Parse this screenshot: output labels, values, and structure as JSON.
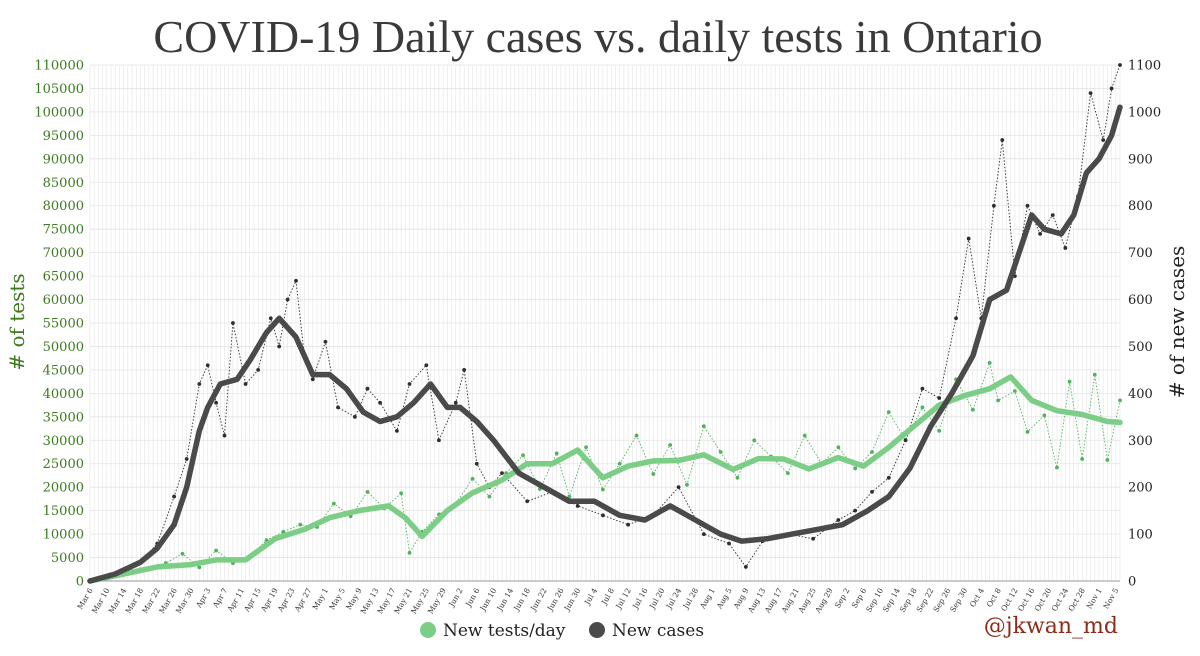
{
  "colors": {
    "tests": "#7ccd86",
    "tests_dot": "#4fb35c",
    "cases": "#4a4a4a",
    "cases_dot": "#2e2e2e",
    "left_axis": "#3c7a1e",
    "right_axis": "#222222",
    "grid": "#e4e4e4",
    "credit": "#8b2d1a"
  },
  "chart_data": {
    "type": "line",
    "title": "COVID-19 Daily cases vs. daily tests in Ontario",
    "ylabel_left": "# of tests",
    "ylabel_right": "# of new cases",
    "ylim_left": [
      0,
      110000
    ],
    "ylim_right": [
      0,
      1100
    ],
    "yticks_left": [
      0,
      5000,
      10000,
      15000,
      20000,
      25000,
      30000,
      35000,
      40000,
      45000,
      50000,
      55000,
      60000,
      65000,
      70000,
      75000,
      80000,
      85000,
      90000,
      95000,
      100000,
      105000,
      110000
    ],
    "yticks_right": [
      0,
      100,
      200,
      300,
      400,
      500,
      600,
      700,
      800,
      900,
      1000,
      1100
    ],
    "x_start": "2020-03-06",
    "x_end": "2020-11-06",
    "xtick_labels": [
      "Mar 6",
      "Mar 10",
      "Mar 14",
      "Mar 18",
      "Mar 22",
      "Mar 26",
      "Mar 30",
      "Apr 3",
      "Apr 7",
      "Apr 11",
      "Apr 15",
      "Apr 19",
      "Apr 23",
      "Apr 27",
      "May 1",
      "May 5",
      "May 9",
      "May 13",
      "May 17",
      "May 21",
      "May 25",
      "May 29",
      "Jun 2",
      "Jun 6",
      "Jun 10",
      "Jun 14",
      "Jun 18",
      "Jun 22",
      "Jun 26",
      "Jun 30",
      "Jul 4",
      "Jul 8",
      "Jul 12",
      "Jul 16",
      "Jul 20",
      "Jul 24",
      "Jul 28",
      "Aug 1",
      "Aug 5",
      "Aug 9",
      "Aug 13",
      "Aug 17",
      "Aug 21",
      "Aug 25",
      "Aug 29",
      "Sep 2",
      "Sep 6",
      "Sep 10",
      "Sep 14",
      "Sep 18",
      "Sep 22",
      "Sep 26",
      "Sep 30",
      "Oct 4",
      "Oct 8",
      "Oct 12",
      "Oct 16",
      "Oct 20",
      "Oct 24",
      "Oct 28",
      "Nov 1",
      "Nov 5"
    ],
    "legend": [
      "New tests/day",
      "New cases"
    ],
    "legend_position": "bottom-center",
    "grid": true,
    "series": [
      {
        "name": "New tests/day",
        "axis": "left",
        "kind": "daily",
        "x": [
          "2020-03-06",
          "2020-03-12",
          "2020-03-18",
          "2020-03-24",
          "2020-03-28",
          "2020-04-01",
          "2020-04-05",
          "2020-04-09",
          "2020-04-13",
          "2020-04-17",
          "2020-04-21",
          "2020-04-25",
          "2020-04-29",
          "2020-05-03",
          "2020-05-07",
          "2020-05-11",
          "2020-05-15",
          "2020-05-19",
          "2020-05-21",
          "2020-05-24",
          "2020-05-28",
          "2020-06-01",
          "2020-06-05",
          "2020-06-09",
          "2020-06-13",
          "2020-06-17",
          "2020-06-21",
          "2020-06-25",
          "2020-06-28",
          "2020-07-02",
          "2020-07-06",
          "2020-07-10",
          "2020-07-14",
          "2020-07-18",
          "2020-07-22",
          "2020-07-26",
          "2020-07-30",
          "2020-08-03",
          "2020-08-07",
          "2020-08-11",
          "2020-08-15",
          "2020-08-19",
          "2020-08-23",
          "2020-08-27",
          "2020-08-31",
          "2020-09-04",
          "2020-09-08",
          "2020-09-12",
          "2020-09-16",
          "2020-09-20",
          "2020-09-24",
          "2020-09-28",
          "2020-10-02",
          "2020-10-06",
          "2020-10-08",
          "2020-10-12",
          "2020-10-15",
          "2020-10-19",
          "2020-10-22",
          "2020-10-25",
          "2020-10-28",
          "2020-10-31",
          "2020-11-03",
          "2020-11-06"
        ],
        "values": [
          200,
          1200,
          2500,
          3800,
          5800,
          2900,
          6500,
          3800,
          5200,
          8700,
          10500,
          12000,
          11500,
          16500,
          13800,
          19000,
          15500,
          18700,
          6000,
          10500,
          14200,
          16500,
          21800,
          18000,
          23000,
          26800,
          19600,
          27200,
          18000,
          28500,
          19500,
          25000,
          31000,
          22800,
          29000,
          20500,
          33000,
          27500,
          22000,
          30000,
          26500,
          23000,
          31000,
          25000,
          28500,
          24000,
          27500,
          36000,
          30000,
          37000,
          32000,
          43000,
          36500,
          46500,
          38500,
          40500,
          31800,
          35300,
          24200,
          42500,
          26000,
          44000,
          25800,
          38500
        ]
      },
      {
        "name": "New tests/day",
        "axis": "left",
        "kind": "7-day average",
        "x": [
          "2020-03-06",
          "2020-03-14",
          "2020-03-22",
          "2020-03-30",
          "2020-04-05",
          "2020-04-12",
          "2020-04-19",
          "2020-04-26",
          "2020-05-02",
          "2020-05-09",
          "2020-05-16",
          "2020-05-20",
          "2020-05-24",
          "2020-05-30",
          "2020-06-05",
          "2020-06-12",
          "2020-06-18",
          "2020-06-24",
          "2020-06-30",
          "2020-07-06",
          "2020-07-12",
          "2020-07-18",
          "2020-07-24",
          "2020-07-30",
          "2020-08-06",
          "2020-08-12",
          "2020-08-18",
          "2020-08-24",
          "2020-08-31",
          "2020-09-06",
          "2020-09-12",
          "2020-09-18",
          "2020-09-24",
          "2020-09-30",
          "2020-10-06",
          "2020-10-11",
          "2020-10-16",
          "2020-10-22",
          "2020-10-28",
          "2020-11-03",
          "2020-11-06"
        ],
        "values": [
          0,
          1500,
          3000,
          3500,
          4500,
          4500,
          9000,
          11000,
          13500,
          15000,
          16000,
          13500,
          9500,
          15000,
          18800,
          21500,
          25000,
          25000,
          27900,
          22000,
          24500,
          25600,
          25700,
          26900,
          23800,
          26100,
          26000,
          23900,
          26300,
          24500,
          28500,
          33000,
          37500,
          39500,
          41000,
          43500,
          38500,
          36300,
          35500,
          34000,
          33800
        ]
      },
      {
        "name": "New cases",
        "axis": "right",
        "kind": "daily",
        "x": [
          "2020-03-06",
          "2020-03-12",
          "2020-03-18",
          "2020-03-22",
          "2020-03-26",
          "2020-03-29",
          "2020-04-01",
          "2020-04-03",
          "2020-04-05",
          "2020-04-07",
          "2020-04-09",
          "2020-04-12",
          "2020-04-15",
          "2020-04-18",
          "2020-04-20",
          "2020-04-22",
          "2020-04-24",
          "2020-04-26",
          "2020-04-28",
          "2020-05-01",
          "2020-05-04",
          "2020-05-08",
          "2020-05-11",
          "2020-05-14",
          "2020-05-18",
          "2020-05-21",
          "2020-05-25",
          "2020-05-28",
          "2020-06-01",
          "2020-06-03",
          "2020-06-06",
          "2020-06-09",
          "2020-06-12",
          "2020-06-18",
          "2020-06-24",
          "2020-06-30",
          "2020-07-06",
          "2020-07-12",
          "2020-07-18",
          "2020-07-24",
          "2020-07-30",
          "2020-08-05",
          "2020-08-09",
          "2020-08-13",
          "2020-08-19",
          "2020-08-25",
          "2020-08-31",
          "2020-09-04",
          "2020-09-08",
          "2020-09-12",
          "2020-09-16",
          "2020-09-20",
          "2020-09-24",
          "2020-09-28",
          "2020-10-01",
          "2020-10-04",
          "2020-10-07",
          "2020-10-09",
          "2020-10-12",
          "2020-10-15",
          "2020-10-18",
          "2020-10-21",
          "2020-10-24",
          "2020-10-27",
          "2020-10-30",
          "2020-11-02",
          "2020-11-04",
          "2020-11-06"
        ],
        "values": [
          1,
          10,
          40,
          80,
          180,
          260,
          420,
          460,
          380,
          310,
          550,
          420,
          450,
          560,
          500,
          600,
          640,
          480,
          430,
          510,
          370,
          350,
          410,
          380,
          320,
          420,
          460,
          300,
          380,
          450,
          250,
          200,
          230,
          170,
          190,
          160,
          140,
          120,
          140,
          200,
          100,
          80,
          30,
          85,
          100,
          90,
          130,
          150,
          190,
          220,
          300,
          410,
          390,
          560,
          730,
          560,
          800,
          940,
          650,
          800,
          740,
          780,
          710,
          820,
          1040,
          940,
          1050,
          1100
        ]
      },
      {
        "name": "New cases",
        "axis": "right",
        "kind": "7-day average",
        "x": [
          "2020-03-06",
          "2020-03-12",
          "2020-03-18",
          "2020-03-22",
          "2020-03-26",
          "2020-03-29",
          "2020-04-01",
          "2020-04-03",
          "2020-04-06",
          "2020-04-10",
          "2020-04-13",
          "2020-04-17",
          "2020-04-20",
          "2020-04-24",
          "2020-04-28",
          "2020-05-02",
          "2020-05-06",
          "2020-05-10",
          "2020-05-14",
          "2020-05-18",
          "2020-05-22",
          "2020-05-26",
          "2020-05-30",
          "2020-06-02",
          "2020-06-06",
          "2020-06-10",
          "2020-06-16",
          "2020-06-22",
          "2020-06-28",
          "2020-07-04",
          "2020-07-10",
          "2020-07-16",
          "2020-07-22",
          "2020-07-28",
          "2020-08-03",
          "2020-08-08",
          "2020-08-14",
          "2020-08-20",
          "2020-08-26",
          "2020-09-01",
          "2020-09-07",
          "2020-09-12",
          "2020-09-17",
          "2020-09-22",
          "2020-09-27",
          "2020-10-02",
          "2020-10-06",
          "2020-10-10",
          "2020-10-13",
          "2020-10-16",
          "2020-10-19",
          "2020-10-23",
          "2020-10-26",
          "2020-10-29",
          "2020-11-01",
          "2020-11-04",
          "2020-11-06"
        ],
        "values": [
          0,
          15,
          40,
          70,
          120,
          200,
          320,
          370,
          420,
          430,
          470,
          530,
          560,
          520,
          440,
          440,
          410,
          360,
          340,
          350,
          380,
          420,
          370,
          370,
          340,
          300,
          230,
          200,
          170,
          170,
          140,
          130,
          160,
          130,
          100,
          85,
          90,
          100,
          110,
          120,
          150,
          180,
          240,
          330,
          400,
          480,
          600,
          620,
          700,
          780,
          750,
          740,
          780,
          870,
          900,
          950,
          1010
        ]
      }
    ]
  },
  "credit": "@jkwan_md"
}
